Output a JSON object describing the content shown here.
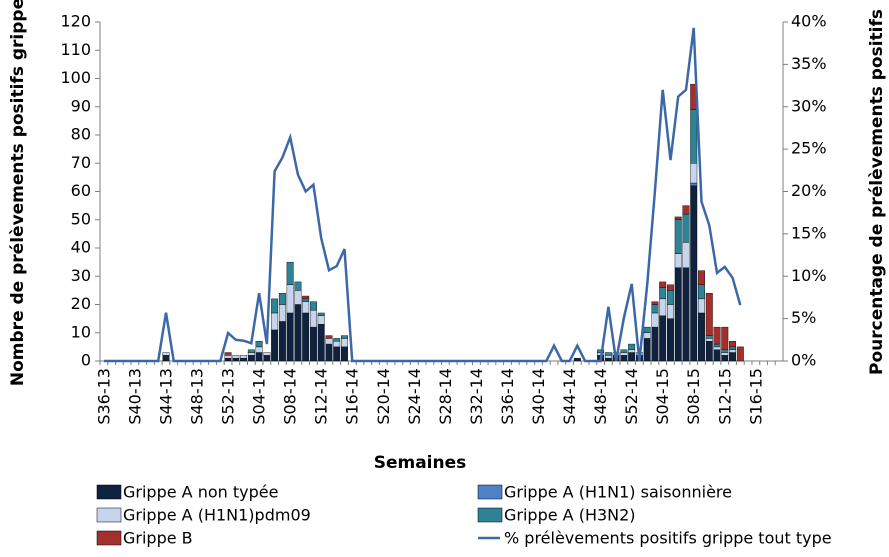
{
  "chart_data": {
    "type": "bar",
    "stacked": true,
    "x_label": "Semaines",
    "y_label": "Nombre de prélèvements positifs grippe",
    "y2_label": "Pourcentage de prélèvements positifs",
    "ylim": [
      0,
      120
    ],
    "yticks": [
      0,
      10,
      20,
      30,
      40,
      50,
      60,
      70,
      80,
      90,
      100,
      110,
      120
    ],
    "y2lim": [
      0,
      40
    ],
    "y2ticks": [
      {
        "value": 0,
        "label": "0%"
      },
      {
        "value": 5,
        "label": "5%"
      },
      {
        "value": 10,
        "label": "10%"
      },
      {
        "value": 15,
        "label": "15%"
      },
      {
        "value": 20,
        "label": "20%"
      },
      {
        "value": 25,
        "label": "25%"
      },
      {
        "value": 30,
        "label": "30%"
      },
      {
        "value": 35,
        "label": "35%"
      },
      {
        "value": 40,
        "label": "40%"
      }
    ],
    "grid": false,
    "categories": [
      "S36-13",
      null,
      null,
      null,
      "S40-13",
      null,
      null,
      null,
      "S44-13",
      null,
      null,
      null,
      "S48-13",
      null,
      null,
      null,
      "S52-13",
      null,
      null,
      null,
      "S04-14",
      null,
      null,
      null,
      "S08-14",
      null,
      null,
      null,
      "S12-14",
      null,
      null,
      null,
      "S16-14",
      null,
      null,
      null,
      "S20-14",
      null,
      null,
      null,
      "S24-14",
      null,
      null,
      null,
      "S28-14",
      null,
      null,
      null,
      "S32-14",
      null,
      null,
      null,
      "S36-14",
      null,
      null,
      null,
      "S40-14",
      null,
      null,
      null,
      "S44-14",
      null,
      null,
      null,
      "S48-14",
      null,
      null,
      null,
      "S52-14",
      null,
      null,
      null,
      "S04-15",
      null,
      null,
      null,
      "S08-15",
      null,
      null,
      null,
      "S12-15",
      null,
      null,
      null,
      "S16-15",
      null,
      null,
      null
    ],
    "series": [
      {
        "name": "Grippe A non typée",
        "color": "#0f2341",
        "values": [
          0,
          0,
          0,
          0,
          0,
          0,
          0,
          0,
          2,
          0,
          0,
          0,
          0,
          0,
          0,
          0,
          1,
          1,
          1,
          2,
          3,
          2,
          11,
          14,
          17,
          20,
          17,
          12,
          13,
          6,
          5,
          5,
          0,
          0,
          0,
          0,
          0,
          0,
          0,
          0,
          0,
          0,
          0,
          0,
          0,
          0,
          0,
          0,
          0,
          0,
          0,
          0,
          0,
          0,
          0,
          0,
          0,
          0,
          0,
          0,
          0,
          1,
          0,
          0,
          2,
          1,
          2,
          2,
          3,
          2,
          8,
          12,
          16,
          15,
          33,
          33,
          62,
          17,
          7,
          4,
          2,
          3,
          0,
          0,
          0,
          0,
          0,
          0
        ]
      },
      {
        "name": "Grippe A (H1N1) saisonnière",
        "color": "#4f81c7",
        "values": [
          0,
          0,
          0,
          0,
          0,
          0,
          0,
          0,
          0,
          0,
          0,
          0,
          0,
          0,
          0,
          0,
          0,
          0,
          0,
          0,
          0,
          0,
          0,
          0,
          0,
          0,
          0,
          0,
          0,
          0,
          0,
          0,
          0,
          0,
          0,
          0,
          0,
          0,
          0,
          0,
          0,
          0,
          0,
          0,
          0,
          0,
          0,
          0,
          0,
          0,
          0,
          0,
          0,
          0,
          0,
          0,
          0,
          0,
          0,
          0,
          0,
          0,
          0,
          0,
          0,
          0,
          0,
          0,
          0,
          0,
          0,
          0,
          0,
          0,
          0,
          0,
          1,
          0,
          0,
          0,
          0,
          0,
          0,
          0,
          0,
          0,
          0,
          0
        ]
      },
      {
        "name": "Grippe A (H1N1)pdm09",
        "color": "#c6d4ec",
        "values": [
          0,
          0,
          0,
          0,
          0,
          0,
          0,
          0,
          1,
          0,
          0,
          0,
          0,
          0,
          0,
          0,
          1,
          1,
          1,
          1,
          2,
          1,
          6,
          6,
          10,
          5,
          4,
          6,
          3,
          2,
          2,
          3,
          0,
          0,
          0,
          0,
          0,
          0,
          0,
          0,
          0,
          0,
          0,
          0,
          0,
          0,
          0,
          0,
          0,
          0,
          0,
          0,
          0,
          0,
          0,
          0,
          0,
          0,
          0,
          0,
          0,
          0,
          0,
          0,
          1,
          1,
          1,
          1,
          1,
          1,
          2,
          5,
          6,
          5,
          5,
          9,
          7,
          5,
          1,
          1,
          1,
          1,
          0,
          0,
          0,
          0,
          0,
          0
        ]
      },
      {
        "name": "Grippe A (H3N2)",
        "color": "#2f8396",
        "values": [
          0,
          0,
          0,
          0,
          0,
          0,
          0,
          0,
          0,
          0,
          0,
          0,
          0,
          0,
          0,
          0,
          0,
          0,
          0,
          1,
          2,
          0,
          5,
          4,
          8,
          3,
          1,
          3,
          1,
          0,
          1,
          1,
          0,
          0,
          0,
          0,
          0,
          0,
          0,
          0,
          0,
          0,
          0,
          0,
          0,
          0,
          0,
          0,
          0,
          0,
          0,
          0,
          0,
          0,
          0,
          0,
          0,
          0,
          0,
          0,
          0,
          0,
          0,
          0,
          1,
          1,
          0,
          1,
          2,
          0,
          2,
          3,
          4,
          5,
          12,
          10,
          19,
          5,
          1,
          1,
          1,
          1,
          0,
          0,
          0,
          0,
          0,
          0
        ]
      },
      {
        "name": "Grippe B",
        "color": "#a4302c",
        "values": [
          0,
          0,
          0,
          0,
          0,
          0,
          0,
          0,
          0,
          0,
          0,
          0,
          0,
          0,
          0,
          0,
          1,
          0,
          0,
          0,
          0,
          0,
          0,
          0,
          0,
          0,
          1,
          0,
          0,
          1,
          0,
          0,
          0,
          0,
          0,
          0,
          0,
          0,
          0,
          0,
          0,
          0,
          0,
          0,
          0,
          0,
          0,
          0,
          0,
          0,
          0,
          0,
          0,
          0,
          0,
          0,
          0,
          0,
          0,
          0,
          0,
          0,
          0,
          0,
          0,
          0,
          0,
          0,
          0,
          0,
          0,
          1,
          2,
          2,
          1,
          3,
          9,
          5,
          15,
          6,
          8,
          2,
          5,
          0,
          0,
          0,
          0,
          0
        ]
      },
      {
        "name": "% prélèvements positifs grippe tout type",
        "color": "#3d68a8",
        "type": "line",
        "axis": "y2",
        "values": [
          0,
          0,
          0,
          0,
          0,
          0,
          0,
          0,
          5.7,
          0,
          0,
          0,
          0,
          0,
          0,
          0,
          3.3,
          2.5,
          2.4,
          2.1,
          8,
          2,
          22.4,
          24,
          26.4,
          22,
          20,
          20.8,
          14.5,
          10.7,
          11.2,
          13.2,
          0,
          0,
          0,
          0,
          0,
          0,
          0,
          0,
          0,
          0,
          0,
          0,
          0,
          0,
          0,
          0,
          0,
          0,
          0,
          0,
          0,
          0,
          0,
          0,
          0,
          0,
          1.8,
          0,
          0,
          1.8,
          0,
          0,
          0,
          6.4,
          0,
          5.1,
          9.1,
          0,
          9,
          20,
          32,
          23.7,
          31.2,
          32,
          39.3,
          18.8,
          16,
          10.4,
          11.1,
          9.8,
          6.6,
          null,
          null,
          null,
          null,
          null
        ]
      }
    ]
  }
}
